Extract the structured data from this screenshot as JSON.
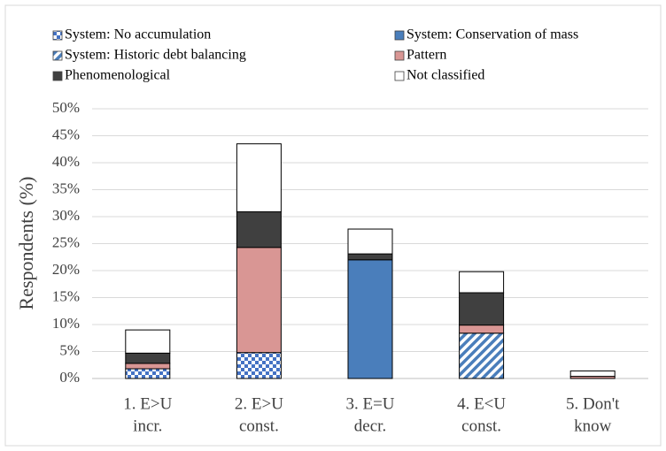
{
  "chart_data": {
    "type": "stacked-bar",
    "categories": [
      [
        "1. E>U",
        "incr."
      ],
      [
        "2. E>U",
        "const."
      ],
      [
        "3. E=U",
        "decr."
      ],
      [
        "4. E<U",
        "const."
      ],
      [
        "5. Don't",
        "know"
      ]
    ],
    "series": [
      {
        "name": "System: No accumulation",
        "color": "#4472c4",
        "pattern": "checker",
        "values": [
          1.8,
          4.8,
          0,
          0,
          0
        ]
      },
      {
        "name": "System: Conservation of mass",
        "color": "#4a7ebb",
        "values": [
          0,
          0,
          22.0,
          0,
          0
        ]
      },
      {
        "name": "System: Historic debt balancing",
        "color": "#4a7ebb",
        "pattern": "hatch",
        "values": [
          0,
          0,
          0,
          8.4,
          0
        ]
      },
      {
        "name": "Pattern",
        "color": "#d99694",
        "values": [
          1.0,
          19.5,
          0,
          1.5,
          0.4
        ]
      },
      {
        "name": "Phenomenological",
        "color": "#404040",
        "values": [
          1.9,
          6.6,
          1.1,
          6.0,
          0
        ]
      },
      {
        "name": "Not classified",
        "color": "#ffffff",
        "values": [
          4.3,
          12.6,
          4.6,
          3.9,
          1.0
        ]
      }
    ],
    "y_label": "Respondents (%)",
    "ylim": [
      0,
      50
    ],
    "yticks": [
      {
        "value": 0,
        "label": "0%"
      },
      {
        "value": 5,
        "label": "5%"
      },
      {
        "value": 10,
        "label": "10%"
      },
      {
        "value": 15,
        "label": "15%"
      },
      {
        "value": 20,
        "label": "20%"
      },
      {
        "value": 25,
        "label": "25%"
      },
      {
        "value": 30,
        "label": "30%"
      },
      {
        "value": 35,
        "label": "35%"
      },
      {
        "value": 40,
        "label": "40%"
      },
      {
        "value": 45,
        "label": "45%"
      },
      {
        "value": 50,
        "label": "50%"
      }
    ],
    "grid": true
  }
}
